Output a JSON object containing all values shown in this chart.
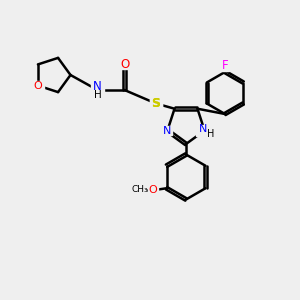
{
  "bg_color": "#efefef",
  "bond_color": "#000000",
  "bond_width": 1.8,
  "N_color": "#0000ff",
  "O_color": "#ff0000",
  "S_color": "#cccc00",
  "F_color": "#ff00ff",
  "figsize": [
    3.0,
    3.0
  ],
  "dpi": 100,
  "xlim": [
    0,
    10
  ],
  "ylim": [
    0,
    10
  ]
}
